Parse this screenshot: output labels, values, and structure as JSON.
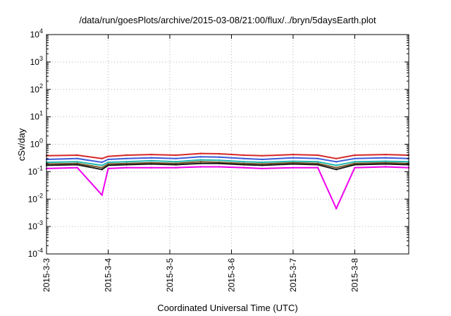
{
  "chart_data": {
    "type": "line",
    "title": "/data/run/goesPlots/archive/2015-03-08/21:00/flux/../bryn/5daysEarth.plot",
    "xlabel": "Coordinated Universal Time (UTC)",
    "ylabel": "cSv/day",
    "yscale": "log",
    "ylim": [
      0.0001,
      10000
    ],
    "xlim": [
      "2015-3-3 00:00",
      "2015-3-8 21:00"
    ],
    "yticks": [
      {
        "value": 0.0001,
        "label": "10-4",
        "base": "10",
        "exp": "-4"
      },
      {
        "value": 0.001,
        "label": "10-3",
        "base": "10",
        "exp": "-3"
      },
      {
        "value": 0.01,
        "label": "10-2",
        "base": "10",
        "exp": "-2"
      },
      {
        "value": 0.1,
        "label": "10-1",
        "base": "10",
        "exp": "-1"
      },
      {
        "value": 1,
        "label": "100",
        "base": "10",
        "exp": "0"
      },
      {
        "value": 10,
        "label": "101",
        "base": "10",
        "exp": "1"
      },
      {
        "value": 100,
        "label": "102",
        "base": "10",
        "exp": "2"
      },
      {
        "value": 1000,
        "label": "103",
        "base": "10",
        "exp": "3"
      },
      {
        "value": 10000,
        "label": "104",
        "base": "10",
        "exp": "4"
      }
    ],
    "xticks": [
      "2015-3-3",
      "2015-3-4",
      "2015-3-5",
      "2015-3-6",
      "2015-3-7",
      "2015-3-8"
    ],
    "grid": true,
    "legend": "none",
    "x": [
      0,
      0.5,
      0.9,
      1.0,
      1.3,
      1.7,
      2.1,
      2.5,
      2.8,
      3.2,
      3.5,
      4.0,
      4.4,
      4.7,
      5.0,
      5.5,
      5.875
    ],
    "series": [
      {
        "color": "#d62728",
        "values": [
          0.38,
          0.4,
          0.3,
          0.36,
          0.4,
          0.42,
          0.4,
          0.46,
          0.45,
          0.4,
          0.38,
          0.42,
          0.4,
          0.3,
          0.4,
          0.42,
          0.4
        ]
      },
      {
        "color": "#3a5bd9",
        "values": [
          0.28,
          0.3,
          0.22,
          0.28,
          0.3,
          0.32,
          0.3,
          0.35,
          0.34,
          0.3,
          0.28,
          0.32,
          0.3,
          0.23,
          0.3,
          0.32,
          0.3
        ]
      },
      {
        "color": "#22b8b0",
        "values": [
          0.22,
          0.23,
          0.17,
          0.22,
          0.23,
          0.25,
          0.23,
          0.27,
          0.26,
          0.23,
          0.22,
          0.24,
          0.23,
          0.17,
          0.23,
          0.24,
          0.23
        ]
      },
      {
        "color": "#7a5a2a",
        "values": [
          0.19,
          0.2,
          0.14,
          0.19,
          0.2,
          0.21,
          0.2,
          0.23,
          0.22,
          0.2,
          0.19,
          0.21,
          0.2,
          0.14,
          0.2,
          0.21,
          0.2
        ]
      },
      {
        "color": "#1a1a1a",
        "values": [
          0.17,
          0.18,
          0.12,
          0.17,
          0.18,
          0.19,
          0.18,
          0.2,
          0.2,
          0.18,
          0.17,
          0.19,
          0.18,
          0.12,
          0.18,
          0.19,
          0.18
        ]
      },
      {
        "color": "#ee00ee",
        "values": [
          0.13,
          0.14,
          0.014,
          0.13,
          0.14,
          0.14,
          0.14,
          0.15,
          0.15,
          0.14,
          0.13,
          0.14,
          0.14,
          0.0045,
          0.14,
          0.15,
          0.14
        ]
      }
    ]
  }
}
